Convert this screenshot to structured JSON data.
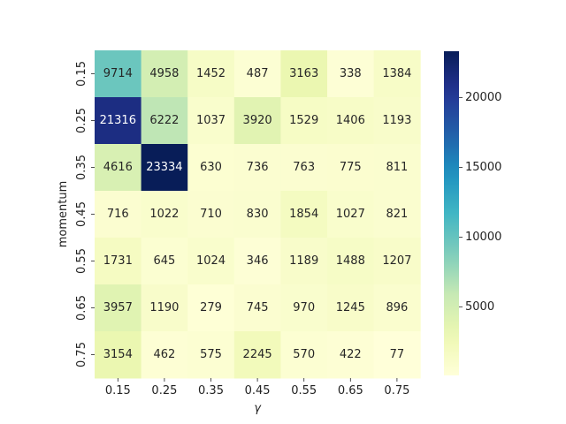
{
  "chart_data": {
    "type": "heatmap",
    "xlabel": "γ",
    "ylabel": "momentum",
    "x_categories": [
      "0.15",
      "0.25",
      "0.35",
      "0.45",
      "0.55",
      "0.65",
      "0.75"
    ],
    "y_categories": [
      "0.15",
      "0.25",
      "0.35",
      "0.45",
      "0.55",
      "0.65",
      "0.75"
    ],
    "values": [
      [
        9714,
        4958,
        1452,
        487,
        3163,
        338,
        1384
      ],
      [
        21316,
        6222,
        1037,
        3920,
        1529,
        1406,
        1193
      ],
      [
        4616,
        23334,
        630,
        736,
        763,
        775,
        811
      ],
      [
        716,
        1022,
        710,
        830,
        1854,
        1027,
        821
      ],
      [
        1731,
        645,
        1024,
        346,
        1189,
        1488,
        1207
      ],
      [
        3957,
        1190,
        279,
        745,
        970,
        1245,
        896
      ],
      [
        3154,
        462,
        575,
        2245,
        570,
        422,
        77
      ]
    ],
    "colormap": "YlGnBu",
    "colorbar": {
      "range": [
        77,
        23334
      ],
      "ticks": [
        5000,
        10000,
        15000,
        20000
      ],
      "tick_labels": [
        "5000",
        "10000",
        "15000",
        "20000"
      ]
    },
    "annotations": true,
    "grid": false
  }
}
